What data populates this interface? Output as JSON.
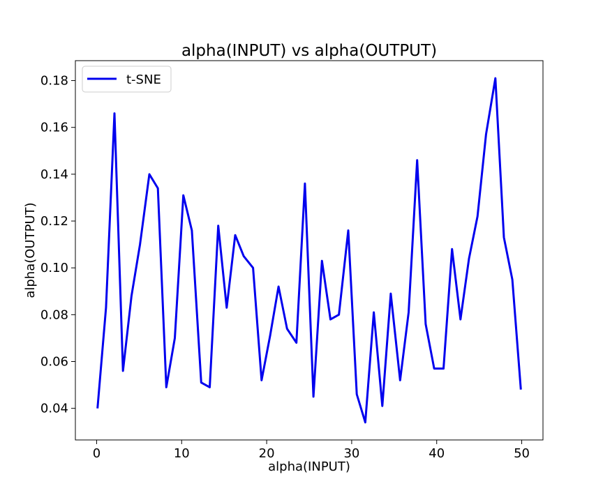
{
  "chart_data": {
    "type": "line",
    "title": "alpha(INPUT) vs alpha(OUTPUT)",
    "xlabel": "alpha(INPUT)",
    "ylabel": "alpha(OUTPUT)",
    "xlim": [
      -2.5,
      52.5
    ],
    "ylim": [
      0.0265,
      0.1885
    ],
    "x_ticks": [
      0,
      10,
      20,
      30,
      40,
      50
    ],
    "x_tick_labels": [
      "0",
      "10",
      "20",
      "30",
      "40",
      "50"
    ],
    "y_ticks": [
      0.04,
      0.06,
      0.08,
      0.1,
      0.12,
      0.14,
      0.16,
      0.18
    ],
    "y_tick_labels": [
      "0.04",
      "0.06",
      "0.08",
      "0.10",
      "0.12",
      "0.14",
      "0.16",
      "0.18"
    ],
    "grid": false,
    "legend_position": "top-left",
    "series": [
      {
        "name": "t-SNE",
        "color": "#0000ee",
        "x": [
          0.1,
          1.1,
          2.1,
          3.1,
          4.1,
          5.1,
          6.2,
          7.2,
          8.2,
          9.2,
          10.2,
          11.2,
          12.3,
          13.3,
          14.3,
          15.3,
          16.3,
          17.3,
          18.4,
          19.4,
          20.4,
          21.4,
          22.4,
          23.5,
          24.5,
          25.5,
          26.5,
          27.5,
          28.5,
          29.6,
          30.6,
          31.6,
          32.6,
          33.6,
          34.6,
          35.7,
          36.7,
          37.7,
          38.7,
          39.7,
          40.8,
          41.8,
          42.8,
          43.8,
          44.8,
          45.8,
          46.9,
          47.9,
          48.9,
          49.9
        ],
        "values": [
          0.04,
          0.083,
          0.166,
          0.056,
          0.088,
          0.11,
          0.14,
          0.134,
          0.049,
          0.07,
          0.131,
          0.116,
          0.051,
          0.049,
          0.118,
          0.083,
          0.114,
          0.105,
          0.1,
          0.052,
          0.071,
          0.092,
          0.074,
          0.068,
          0.136,
          0.045,
          0.103,
          0.078,
          0.08,
          0.116,
          0.046,
          0.034,
          0.081,
          0.041,
          0.089,
          0.052,
          0.081,
          0.146,
          0.076,
          0.057,
          0.057,
          0.108,
          0.078,
          0.104,
          0.122,
          0.157,
          0.181,
          0.113,
          0.095,
          0.048
        ]
      }
    ]
  }
}
